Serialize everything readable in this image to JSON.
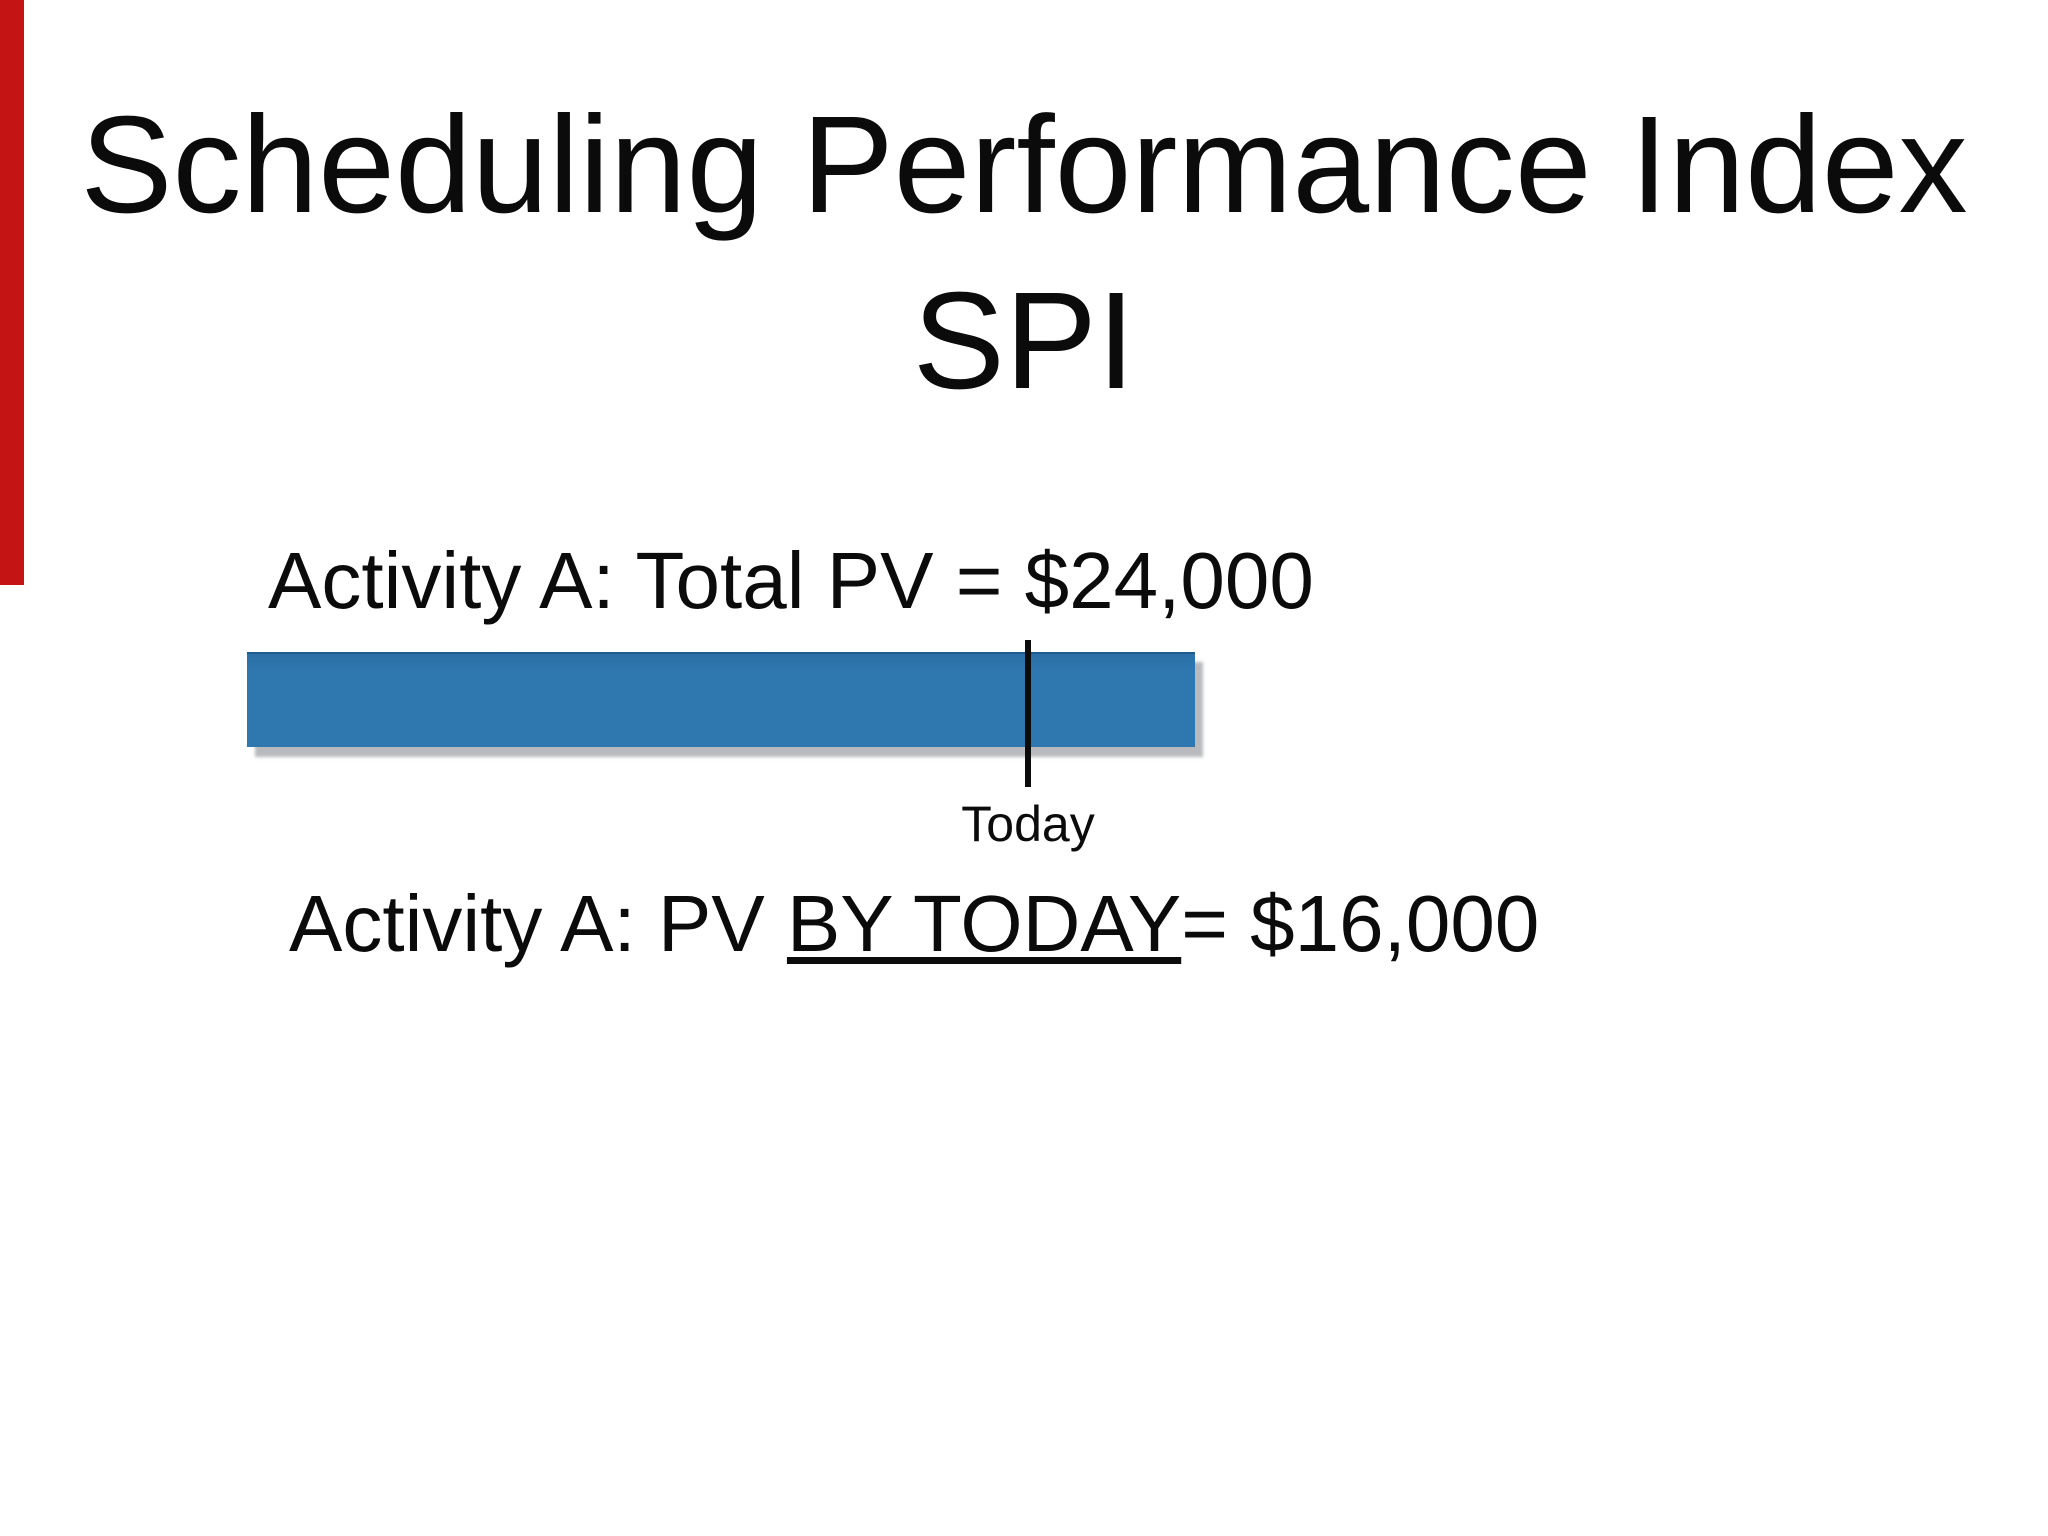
{
  "slide": {
    "title_line1": "Scheduling Performance Index",
    "title_line2": "SPI",
    "total_pv_label": "Activity A: Total PV = $24,000",
    "by_today_prefix": "Activity A: PV ",
    "by_today_underlined": "BY TODAY",
    "by_today_suffix": "= $16,000",
    "today_marker_label": "Today"
  },
  "diagram": {
    "activity": "Activity A",
    "total_pv": "$24,000",
    "pv_by_today": "$16,000",
    "marker": "Today"
  },
  "colors": {
    "background": "#ffffff",
    "text": "#0b0b0b",
    "bar_fill": "#2e77af",
    "bar_top_edge": "#1e5c8e",
    "bar_shadow": "#7d8287",
    "marker_line": "#0c0c0c",
    "left_red_strip": "#c51414"
  }
}
